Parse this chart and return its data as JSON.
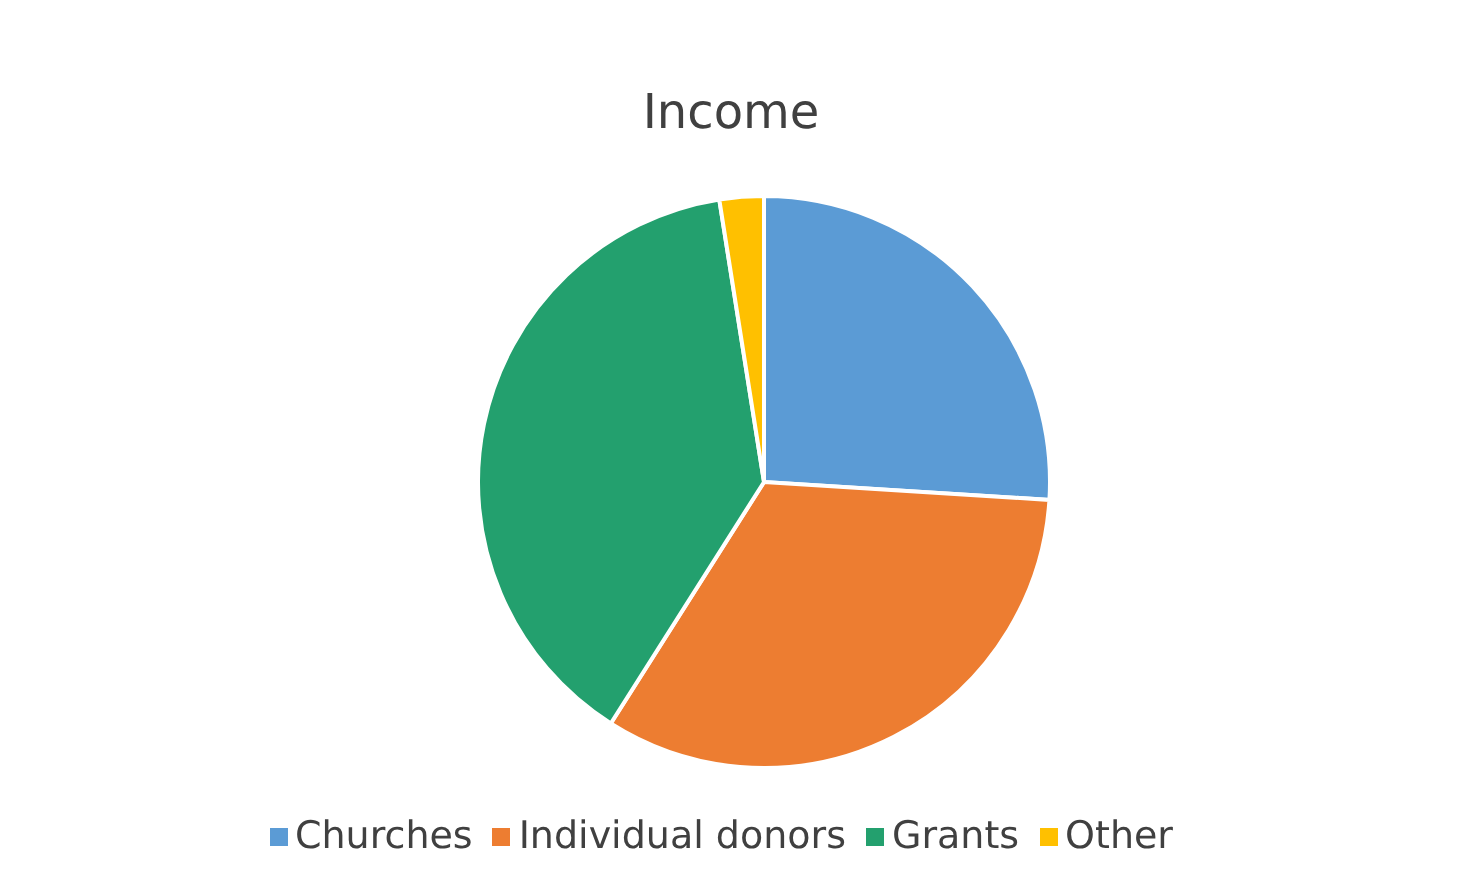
{
  "chart_data": {
    "type": "pie",
    "title": "Income",
    "categories": [
      "Churches",
      "Individual donors",
      "Grants",
      "Other"
    ],
    "values": [
      26,
      33,
      38.5,
      2.5
    ],
    "colors": [
      "#5b9bd5",
      "#ed7d31",
      "#23a06e",
      "#ffc000"
    ],
    "legend": "bottom"
  }
}
